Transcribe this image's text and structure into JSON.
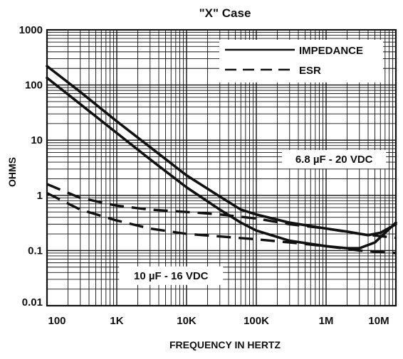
{
  "chart_data": {
    "type": "line",
    "title": "\"X\" Case",
    "xlabel": "FREQUENCY IN HERTZ",
    "ylabel": "OHMS",
    "x_scale": "log",
    "y_scale": "log",
    "xlim": [
      100,
      10000000
    ],
    "ylim": [
      0.01,
      1000
    ],
    "grid": true,
    "legend_position": "top-right",
    "x_ticks": [
      {
        "value": 100,
        "label": "100"
      },
      {
        "value": 1000,
        "label": "1K"
      },
      {
        "value": 10000,
        "label": "10K"
      },
      {
        "value": 100000,
        "label": "100K"
      },
      {
        "value": 1000000,
        "label": "1M"
      },
      {
        "value": 10000000,
        "label": "10M"
      }
    ],
    "y_ticks": [
      {
        "value": 0.01,
        "label": "0.01"
      },
      {
        "value": 0.1,
        "label": "0.1"
      },
      {
        "value": 1,
        "label": "1"
      },
      {
        "value": 10,
        "label": "10"
      },
      {
        "value": 100,
        "label": "100"
      },
      {
        "value": 1000,
        "label": "1000"
      }
    ],
    "legend": [
      {
        "label": "IMPEDANCE",
        "style": "solid"
      },
      {
        "label": "ESR",
        "style": "dashed"
      }
    ],
    "annotations": [
      {
        "text": "6.8 µF - 20 VDC",
        "x": 1300000,
        "y": 4.5
      },
      {
        "text": "10 µF - 16 VDC",
        "x": 6000,
        "y": 0.035
      }
    ],
    "series": [
      {
        "style": "solid",
        "x": [
          100,
          300,
          1000,
          3000,
          10000,
          30000,
          60000,
          100000,
          300000,
          1000000,
          2000000,
          4000000,
          6000000,
          10000000
        ],
        "y": [
          220,
          75,
          22,
          7.5,
          2.3,
          0.95,
          0.55,
          0.45,
          0.32,
          0.25,
          0.22,
          0.19,
          0.21,
          0.3
        ]
      },
      {
        "style": "solid",
        "x": [
          100,
          300,
          1000,
          3000,
          10000,
          30000,
          60000,
          100000,
          300000,
          1000000,
          2000000,
          3000000,
          5000000,
          10000000
        ],
        "y": [
          135,
          45,
          13.5,
          4.5,
          1.4,
          0.55,
          0.32,
          0.23,
          0.15,
          0.12,
          0.11,
          0.11,
          0.14,
          0.32
        ]
      },
      {
        "style": "dashed",
        "x": [
          100,
          300,
          1000,
          3000,
          10000,
          30000,
          100000,
          300000,
          1000000,
          3000000,
          10000000
        ],
        "y": [
          1.6,
          0.9,
          0.65,
          0.55,
          0.5,
          0.45,
          0.38,
          0.3,
          0.25,
          0.2,
          0.17
        ]
      },
      {
        "style": "dashed",
        "x": [
          100,
          300,
          1000,
          3000,
          10000,
          30000,
          100000,
          300000,
          1000000,
          3000000,
          10000000
        ],
        "y": [
          1.1,
          0.55,
          0.35,
          0.25,
          0.2,
          0.18,
          0.16,
          0.14,
          0.12,
          0.1,
          0.09
        ]
      }
    ]
  }
}
